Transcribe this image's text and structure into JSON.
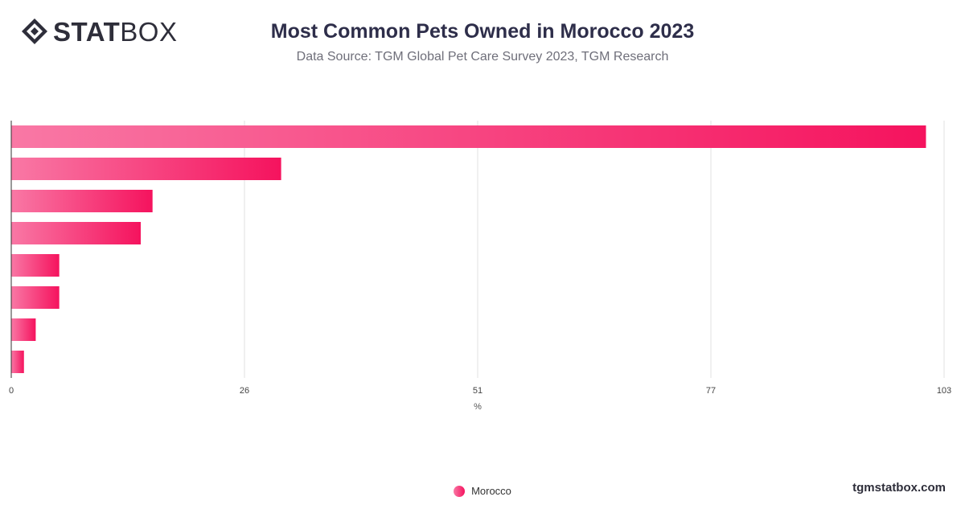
{
  "header": {
    "logo_bold": "STAT",
    "logo_light": "BOX",
    "title": "Most Common Pets Owned in Morocco 2023",
    "subtitle": "Data Source: TGM Global Pet Care Survey 2023, TGM Research"
  },
  "footer": {
    "brand": "tgmstatbox.com"
  },
  "colors": {
    "bar_start": "#f978a5",
    "bar_end": "#f5135e",
    "grid": "#e2e2e2",
    "axis": "#333333"
  },
  "chart_data": {
    "type": "bar",
    "orientation": "horizontal",
    "title": "Most Common Pets Owned in Morocco 2023",
    "subtitle": "Data Source: TGM Global Pet Care Survey 2023, TGM Research",
    "xlabel": "%",
    "xlim": [
      0,
      103
    ],
    "xticks": [
      "0",
      "26",
      "51",
      "77",
      "103"
    ],
    "grid": true,
    "legend_position": "bottom-center",
    "series": [
      {
        "name": "Morocco",
        "values": [
          101,
          29.8,
          15.6,
          14.3,
          5.3,
          5.3,
          2.7,
          1.4
        ]
      }
    ]
  }
}
